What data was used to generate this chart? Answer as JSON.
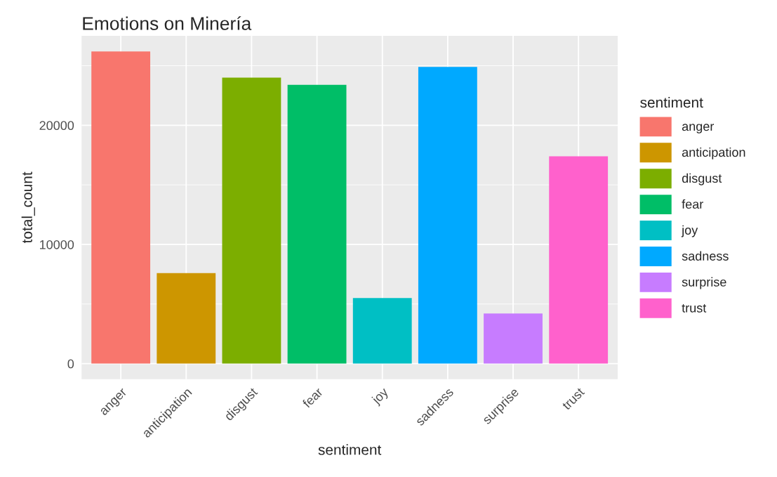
{
  "chart_data": {
    "type": "bar",
    "title": "Emotions on Minería",
    "xlabel": "sentiment",
    "ylabel": "total_count",
    "legend_title": "sentiment",
    "categories": [
      "anger",
      "anticipation",
      "disgust",
      "fear",
      "joy",
      "sadness",
      "surprise",
      "trust"
    ],
    "series": [
      {
        "name": "anger",
        "color": "#f8766d",
        "values": [
          26200,
          null,
          null,
          null,
          null,
          null,
          null,
          null
        ]
      },
      {
        "name": "anticipation",
        "color": "#cd9600",
        "values": [
          null,
          7600,
          null,
          null,
          null,
          null,
          null,
          null
        ]
      },
      {
        "name": "disgust",
        "color": "#7cae00",
        "values": [
          null,
          null,
          24000,
          null,
          null,
          null,
          null,
          null
        ]
      },
      {
        "name": "fear",
        "color": "#00be67",
        "values": [
          null,
          null,
          null,
          23400,
          null,
          null,
          null,
          null
        ]
      },
      {
        "name": "joy",
        "color": "#00bfc4",
        "values": [
          null,
          null,
          null,
          null,
          5500,
          null,
          null,
          null
        ]
      },
      {
        "name": "sadness",
        "color": "#00a9ff",
        "values": [
          null,
          null,
          null,
          null,
          null,
          24900,
          null,
          null
        ]
      },
      {
        "name": "surprise",
        "color": "#c77cff",
        "values": [
          null,
          null,
          null,
          null,
          null,
          null,
          4200,
          null
        ]
      },
      {
        "name": "trust",
        "color": "#ff61cc",
        "values": [
          null,
          null,
          null,
          null,
          null,
          null,
          null,
          17400
        ]
      }
    ],
    "ylim": [
      -1310,
      27510
    ],
    "yticks": [
      0,
      10000,
      20000
    ],
    "grid": true,
    "legend": "right"
  }
}
